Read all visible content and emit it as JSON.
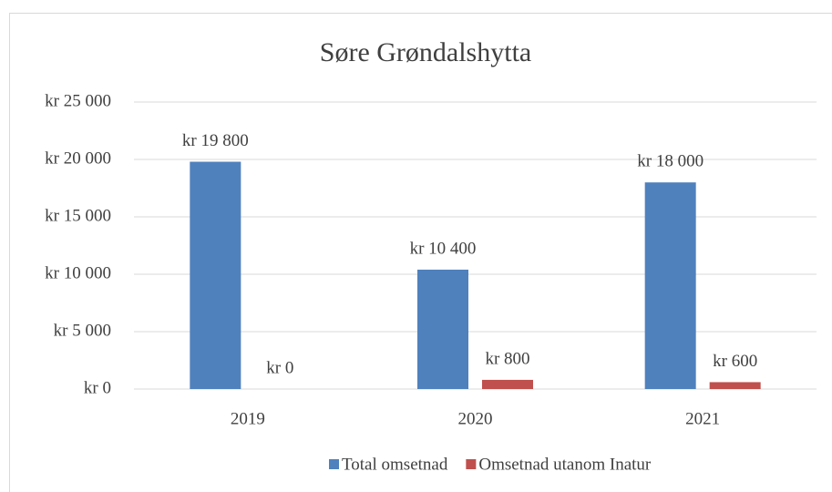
{
  "chart_data": {
    "type": "bar",
    "title": "Søre Grøndalshytta",
    "categories": [
      "2019",
      "2020",
      "2021"
    ],
    "series": [
      {
        "name": "Total omsetnad",
        "color": "#4f81bd",
        "values": [
          19800,
          10400,
          18000
        ],
        "value_labels": [
          "kr 19 800",
          "kr 10 400",
          "kr 18 000"
        ]
      },
      {
        "name": "Omsetnad utanom Inatur",
        "color": "#c0504d",
        "values": [
          0,
          800,
          600
        ],
        "value_labels": [
          "kr  0",
          "kr  800",
          "kr  600"
        ]
      }
    ],
    "ylim": [
      0,
      25000
    ],
    "yticks": [
      {
        "value": 0,
        "label": "kr  0"
      },
      {
        "value": 5000,
        "label": "kr 5 000"
      },
      {
        "value": 10000,
        "label": "kr 10 000"
      },
      {
        "value": 15000,
        "label": "kr 15 000"
      },
      {
        "value": 20000,
        "label": "kr 20 000"
      },
      {
        "value": 25000,
        "label": "kr 25 000"
      }
    ],
    "grid": true,
    "legend": "bottom"
  }
}
